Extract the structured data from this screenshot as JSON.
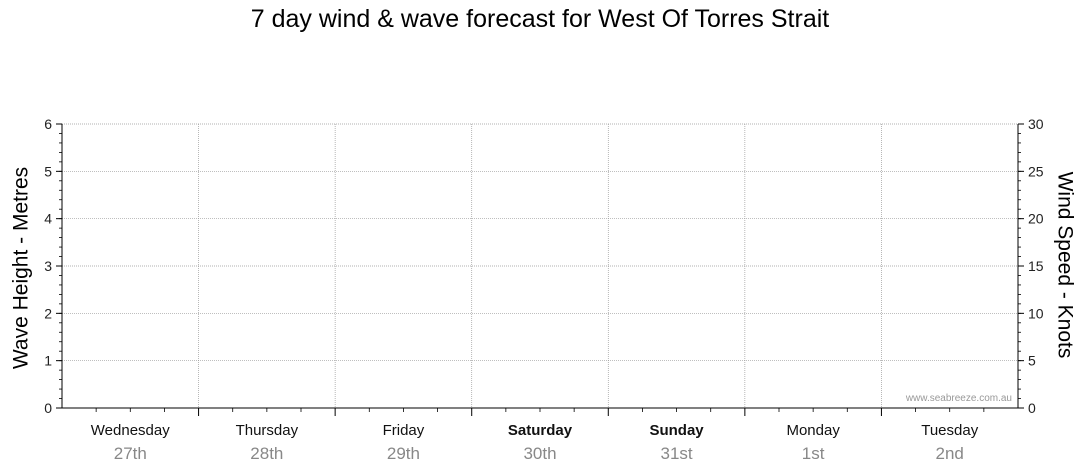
{
  "chart_data": {
    "type": "line",
    "title": "7 day wind & wave forecast for West Of Torres Strait",
    "left_axis": {
      "label": "Wave Height - Metres",
      "range": [
        0,
        6
      ],
      "ticks": [
        "0",
        "1",
        "2",
        "3",
        "4",
        "5",
        "6"
      ]
    },
    "right_axis": {
      "label": "Wind Speed - Knots",
      "range": [
        0,
        30
      ],
      "ticks": [
        "0",
        "5",
        "10",
        "15",
        "20",
        "25",
        "30"
      ]
    },
    "days": [
      {
        "name": "Wednesday",
        "date": "27th",
        "bold": false
      },
      {
        "name": "Thursday",
        "date": "28th",
        "bold": false
      },
      {
        "name": "Friday",
        "date": "29th",
        "bold": false
      },
      {
        "name": "Saturday",
        "date": "30th",
        "bold": true
      },
      {
        "name": "Sunday",
        "date": "31st",
        "bold": true
      },
      {
        "name": "Monday",
        "date": "1st",
        "bold": false
      },
      {
        "name": "Tuesday",
        "date": "2nd",
        "bold": false
      }
    ],
    "series": [],
    "grid": true
  },
  "watermark": "www.seabreeze.com.au",
  "colors": {
    "grid": "#999999",
    "axis": "#000000",
    "day_date": "#888888"
  }
}
